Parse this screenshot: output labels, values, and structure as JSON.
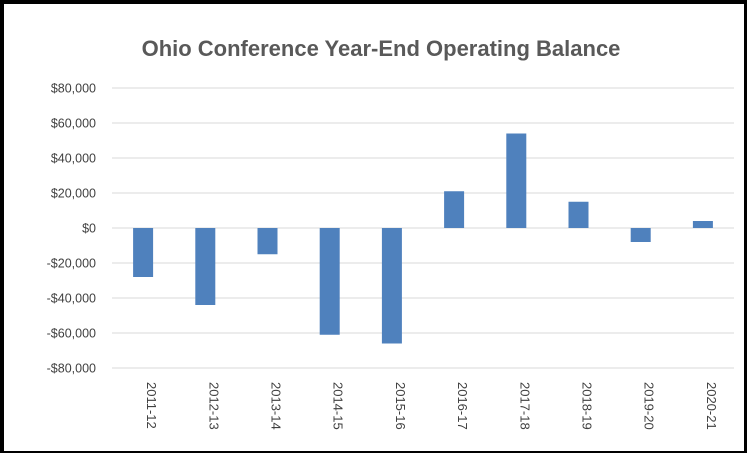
{
  "chart_data": {
    "type": "bar",
    "title": "Ohio Conference Year-End Operating Balance",
    "xlabel": "",
    "ylabel": "",
    "categories": [
      "2011-12",
      "2012-13",
      "2013-14",
      "2014-15",
      "2015-16",
      "2016-17",
      "2017-18",
      "2018-19",
      "2019-20",
      "2020-21"
    ],
    "values": [
      -28000,
      -44000,
      -15000,
      -61000,
      -66000,
      21000,
      54000,
      15000,
      -8000,
      4000
    ],
    "ylim": [
      -80000,
      80000
    ],
    "yticks": [
      80000,
      60000,
      40000,
      20000,
      0,
      -20000,
      -40000,
      -60000,
      -80000
    ],
    "ytick_labels": [
      "$80,000",
      "$60,000",
      "$40,000",
      "$20,000",
      "$0",
      "-$20,000",
      "-$40,000",
      "-$60,000",
      "-$80,000"
    ],
    "grid": true,
    "legend": "none",
    "bar_color": "#4f81bd",
    "grid_color": "#d9d9d9"
  }
}
